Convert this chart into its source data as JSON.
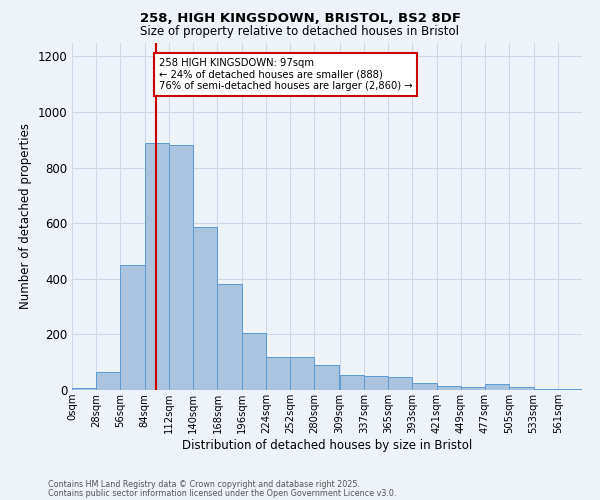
{
  "title_line1": "258, HIGH KINGSDOWN, BRISTOL, BS2 8DF",
  "title_line2": "Size of property relative to detached houses in Bristol",
  "xlabel": "Distribution of detached houses by size in Bristol",
  "ylabel": "Number of detached properties",
  "bin_labels": [
    "0sqm",
    "28sqm",
    "56sqm",
    "84sqm",
    "112sqm",
    "140sqm",
    "168sqm",
    "196sqm",
    "224sqm",
    "252sqm",
    "280sqm",
    "309sqm",
    "337sqm",
    "365sqm",
    "393sqm",
    "421sqm",
    "449sqm",
    "477sqm",
    "505sqm",
    "533sqm",
    "561sqm"
  ],
  "bar_heights": [
    8,
    65,
    450,
    890,
    880,
    585,
    380,
    205,
    120,
    120,
    90,
    55,
    50,
    45,
    25,
    15,
    12,
    20,
    12,
    4,
    2
  ],
  "bar_color": "#aac4e0",
  "bar_edge_color": "#5b9bd5",
  "grid_color": "#d0d8e8",
  "background_color": "#eef2f9",
  "vline_x": 97,
  "vline_color": "#cc0000",
  "annotation_text": "258 HIGH KINGSDOWN: 97sqm\n← 24% of detached houses are smaller (888)\n76% of semi-detached houses are larger (2,860) →",
  "annotation_box_color": "#ffffff",
  "annotation_box_edge": "#cc0000",
  "ylim": [
    0,
    1250
  ],
  "yticks": [
    0,
    200,
    400,
    600,
    800,
    1000,
    1200
  ],
  "bin_edges": [
    0,
    28,
    56,
    84,
    112,
    140,
    168,
    196,
    224,
    252,
    280,
    309,
    337,
    365,
    393,
    421,
    449,
    477,
    505,
    533,
    561
  ],
  "xlim_max": 589,
  "footnote1": "Contains HM Land Registry data © Crown copyright and database right 2025.",
  "footnote2": "Contains public sector information licensed under the Open Government Licence v3.0."
}
